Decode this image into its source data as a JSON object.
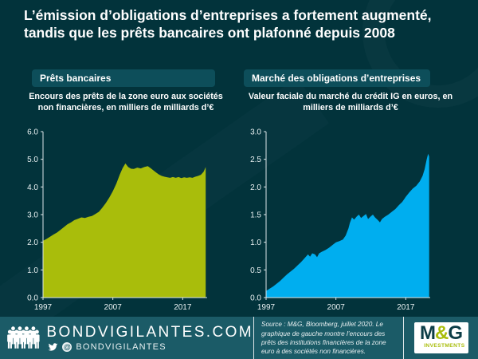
{
  "title": "L’émission d’obligations d’entreprises a fortement augmenté, tandis que les prêts bancaires ont plafonné depuis 2008",
  "colors": {
    "background": "#02333b",
    "panel_chip": "#0d4e5a",
    "footer_background": "#1b5b67",
    "loans_area": "#a9bd0b",
    "bonds_area": "#00aeef",
    "axis": "#dce6e8",
    "text": "#ffffff"
  },
  "chart_data": [
    {
      "type": "area",
      "header": "Prêts bancaires",
      "subtitle": "Encours des prêts de la zone euro aux sociétés non financières, en milliers de milliards d’€",
      "color": "#a9bd0b",
      "xlim": [
        1997,
        2020.5
      ],
      "ylim": [
        0,
        6
      ],
      "yticks": [
        0,
        1,
        2,
        3,
        4,
        5,
        6
      ],
      "xticks": [
        1997,
        2007,
        2017
      ],
      "x": [
        1997,
        1997.5,
        1998,
        1998.5,
        1999,
        1999.5,
        2000,
        2000.5,
        2001,
        2001.5,
        2002,
        2002.5,
        2003,
        2003.5,
        2004,
        2004.5,
        2005,
        2005.5,
        2006,
        2006.5,
        2007,
        2007.5,
        2008,
        2008.4,
        2008.8,
        2009.2,
        2009.6,
        2010,
        2010.5,
        2011,
        2011.5,
        2012,
        2012.4,
        2012.8,
        2013.2,
        2013.6,
        2014,
        2014.4,
        2014.8,
        2015.2,
        2015.6,
        2016,
        2016.4,
        2016.8,
        2017.2,
        2017.6,
        2018,
        2018.4,
        2018.8,
        2019.2,
        2019.6,
        2020,
        2020.3
      ],
      "values": [
        2.05,
        2.12,
        2.2,
        2.28,
        2.35,
        2.45,
        2.55,
        2.65,
        2.72,
        2.8,
        2.85,
        2.9,
        2.88,
        2.92,
        2.95,
        3.02,
        3.1,
        3.25,
        3.42,
        3.62,
        3.85,
        4.12,
        4.45,
        4.68,
        4.85,
        4.72,
        4.66,
        4.65,
        4.7,
        4.67,
        4.72,
        4.75,
        4.68,
        4.6,
        4.52,
        4.45,
        4.4,
        4.37,
        4.35,
        4.33,
        4.36,
        4.33,
        4.36,
        4.32,
        4.35,
        4.33,
        4.35,
        4.33,
        4.37,
        4.4,
        4.44,
        4.55,
        4.72
      ]
    },
    {
      "type": "area",
      "header": "Marché des obligations d’entreprises",
      "subtitle": "Valeur faciale du marché du crédit IG en euros, en milliers de milliards d’€",
      "color": "#00aeef",
      "xlim": [
        1997,
        2020.5
      ],
      "ylim": [
        0,
        3
      ],
      "yticks": [
        0,
        0.5,
        1,
        1.5,
        2,
        2.5,
        3
      ],
      "xticks": [
        1997,
        2007,
        2017
      ],
      "x": [
        1997,
        1997.5,
        1998,
        1998.5,
        1999,
        1999.5,
        2000,
        2000.5,
        2001,
        2001.5,
        2002,
        2002.5,
        2003,
        2003.3,
        2003.6,
        2004,
        2004.3,
        2004.6,
        2005,
        2005.5,
        2006,
        2006.5,
        2007,
        2007.5,
        2008,
        2008.4,
        2008.8,
        2009,
        2009.3,
        2009.6,
        2010,
        2010.3,
        2010.6,
        2011,
        2011.3,
        2011.6,
        2012,
        2012.3,
        2012.6,
        2013,
        2013.3,
        2013.6,
        2014,
        2014.5,
        2015,
        2015.5,
        2016,
        2016.5,
        2017,
        2017.5,
        2018,
        2018.5,
        2019,
        2019.4,
        2019.7,
        2020,
        2020.2,
        2020.35
      ],
      "values": [
        0.12,
        0.16,
        0.2,
        0.25,
        0.3,
        0.36,
        0.42,
        0.47,
        0.52,
        0.58,
        0.64,
        0.71,
        0.78,
        0.74,
        0.8,
        0.78,
        0.73,
        0.8,
        0.83,
        0.86,
        0.9,
        0.95,
        1.0,
        1.02,
        1.05,
        1.12,
        1.25,
        1.35,
        1.45,
        1.41,
        1.47,
        1.5,
        1.44,
        1.48,
        1.51,
        1.42,
        1.47,
        1.5,
        1.45,
        1.4,
        1.36,
        1.42,
        1.46,
        1.5,
        1.55,
        1.6,
        1.67,
        1.73,
        1.82,
        1.9,
        1.97,
        2.02,
        2.1,
        2.2,
        2.32,
        2.5,
        2.6,
        2.55
      ]
    }
  ],
  "footer": {
    "site": "BONDVIGILANTES.COM",
    "at": "@",
    "handle": "BONDVIGILANTES",
    "source": "Source : M&G, Bloomberg, juillet 2020. Le graphique de gauche montre l’encours des prêts des institutions financières de la zone euro à des sociétés non financières.",
    "logo": {
      "m": "M",
      "amp": "&",
      "g": "G",
      "sub": "INVESTMENTS"
    }
  }
}
